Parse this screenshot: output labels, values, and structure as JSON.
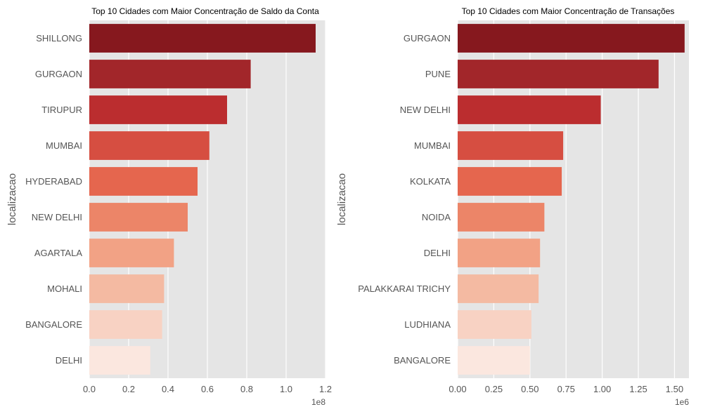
{
  "chart_data": [
    {
      "type": "bar",
      "orientation": "horizontal",
      "title": "Top 10 Cidades com Maior Concentração de Saldo da Conta",
      "ylabel": "localizacao",
      "xlabel": "",
      "x_offset_label": "1e8",
      "xlim": [
        0,
        1.2
      ],
      "xticks": [
        "0.0",
        "0.2",
        "0.4",
        "0.6",
        "0.8",
        "1.0",
        "1.2"
      ],
      "xtick_values": [
        0,
        0.2,
        0.4,
        0.6,
        0.8,
        1.0,
        1.2
      ],
      "grid": true,
      "categories": [
        "SHILLONG",
        "GURGAON",
        "TIRUPUR",
        "MUMBAI",
        "HYDERABAD",
        "NEW DELHI",
        "AGARTALA",
        "MOHALI",
        "BANGALORE",
        "DELHI"
      ],
      "values": [
        1.15,
        0.82,
        0.7,
        0.61,
        0.55,
        0.5,
        0.43,
        0.38,
        0.37,
        0.31
      ],
      "colors": [
        "#86181e",
        "#a2262a",
        "#bb2d2f",
        "#d64e41",
        "#e5664e",
        "#ec8568",
        "#f2a285",
        "#f4baa2",
        "#f8d2c3",
        "#fbe7df"
      ]
    },
    {
      "type": "bar",
      "orientation": "horizontal",
      "title": "Top 10 Cidades com Maior Concentração de Transações",
      "ylabel": "localizacao",
      "xlabel": "",
      "x_offset_label": "1e6",
      "xlim": [
        0,
        1.6
      ],
      "xticks": [
        "0.00",
        "0.25",
        "0.50",
        "0.75",
        "1.00",
        "1.25",
        "1.50"
      ],
      "xtick_values": [
        0,
        0.25,
        0.5,
        0.75,
        1.0,
        1.25,
        1.5
      ],
      "grid": true,
      "categories": [
        "GURGAON",
        "PUNE",
        "NEW DELHI",
        "MUMBAI",
        "KOLKATA",
        "NOIDA",
        "DELHI",
        "PALAKKARAI TRICHY",
        "LUDHIANA",
        "BANGALORE"
      ],
      "values": [
        1.57,
        1.39,
        0.99,
        0.73,
        0.72,
        0.6,
        0.57,
        0.56,
        0.51,
        0.5
      ],
      "colors": [
        "#86181e",
        "#a2262a",
        "#bb2d2f",
        "#d64e41",
        "#e5664e",
        "#ec8568",
        "#f2a285",
        "#f4baa2",
        "#f8d2c3",
        "#fbe7df"
      ]
    }
  ],
  "style": {
    "axes_background": "#e5e5e5",
    "grid_color": "#ffffff",
    "text_color": "#555555",
    "title_color": "#000000"
  }
}
